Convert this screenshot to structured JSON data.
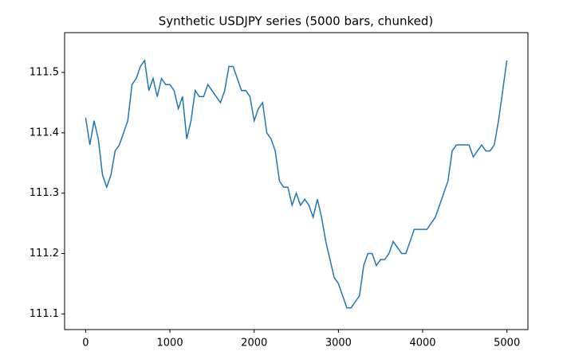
{
  "chart_data": {
    "type": "line",
    "title": "Synthetic USDJPY series (5000 bars, chunked)",
    "x": [
      0,
      50,
      100,
      150,
      200,
      250,
      300,
      350,
      400,
      450,
      500,
      550,
      600,
      650,
      700,
      750,
      800,
      850,
      900,
      950,
      1000,
      1050,
      1100,
      1150,
      1200,
      1250,
      1300,
      1350,
      1400,
      1450,
      1500,
      1550,
      1600,
      1650,
      1700,
      1750,
      1800,
      1850,
      1900,
      1950,
      2000,
      2050,
      2100,
      2150,
      2200,
      2250,
      2300,
      2350,
      2400,
      2450,
      2500,
      2550,
      2600,
      2650,
      2700,
      2750,
      2800,
      2850,
      2900,
      2950,
      3000,
      3050,
      3100,
      3150,
      3200,
      3250,
      3300,
      3350,
      3400,
      3450,
      3500,
      3550,
      3600,
      3650,
      3700,
      3750,
      3800,
      3850,
      3900,
      3950,
      4000,
      4050,
      4100,
      4150,
      4200,
      4250,
      4300,
      4350,
      4400,
      4450,
      4500,
      4550,
      4600,
      4650,
      4700,
      4750,
      4800,
      4850,
      4900,
      4950,
      4999
    ],
    "series": [
      {
        "name": "USDJPY",
        "color": "#1f77b4",
        "values": [
          111.425,
          111.38,
          111.42,
          111.39,
          111.33,
          111.31,
          111.33,
          111.37,
          111.38,
          111.4,
          111.42,
          111.48,
          111.49,
          111.51,
          111.52,
          111.47,
          111.49,
          111.46,
          111.49,
          111.48,
          111.48,
          111.47,
          111.44,
          111.46,
          111.39,
          111.42,
          111.47,
          111.46,
          111.46,
          111.48,
          111.47,
          111.46,
          111.45,
          111.47,
          111.51,
          111.51,
          111.49,
          111.47,
          111.47,
          111.46,
          111.42,
          111.44,
          111.45,
          111.4,
          111.39,
          111.37,
          111.32,
          111.31,
          111.31,
          111.28,
          111.3,
          111.28,
          111.29,
          111.28,
          111.26,
          111.29,
          111.26,
          111.22,
          111.19,
          111.16,
          111.15,
          111.13,
          111.11,
          111.11,
          111.12,
          111.13,
          111.18,
          111.2,
          111.2,
          111.18,
          111.19,
          111.19,
          111.2,
          111.22,
          111.21,
          111.2,
          111.2,
          111.22,
          111.24,
          111.24,
          111.24,
          111.24,
          111.25,
          111.26,
          111.28,
          111.3,
          111.32,
          111.37,
          111.38,
          111.38,
          111.38,
          111.38,
          111.36,
          111.37,
          111.38,
          111.37,
          111.37,
          111.38,
          111.42,
          111.47,
          111.52
        ]
      }
    ],
    "xlim": [
      -250,
      5249
    ],
    "ylim": [
      111.074,
      111.566
    ],
    "xticks": [
      0,
      1000,
      2000,
      3000,
      4000,
      5000
    ],
    "yticks": [
      111.1,
      111.2,
      111.3,
      111.4,
      111.5
    ]
  }
}
